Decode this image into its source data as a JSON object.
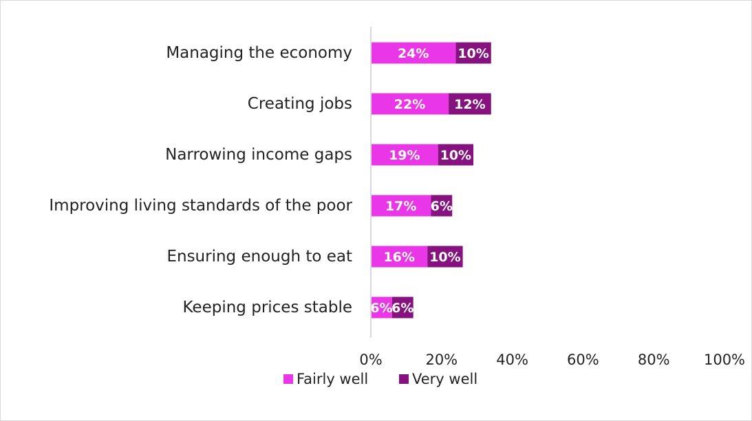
{
  "chart_data": {
    "type": "bar",
    "orientation": "horizontal",
    "stacked": true,
    "categories": [
      "Managing the economy",
      "Creating jobs",
      "Narrowing income gaps",
      "Improving living standards of the poor",
      "Ensuring enough to eat",
      "Keeping prices stable"
    ],
    "series": [
      {
        "name": "Fairly well",
        "values": [
          24,
          22,
          19,
          17,
          16,
          6
        ],
        "labels": [
          "24%",
          "22%",
          "19%",
          "17%",
          "16%",
          "6%"
        ],
        "color": "#e936e6"
      },
      {
        "name": "Very well",
        "values": [
          10,
          12,
          10,
          6,
          10,
          6
        ],
        "labels": [
          "10%",
          "12%",
          "10%",
          "6%",
          "10%",
          "6%"
        ],
        "color": "#85127f"
      }
    ],
    "xlim": [
      0,
      100
    ],
    "xticks": [
      0,
      20,
      40,
      60,
      80,
      100
    ],
    "xtick_labels": [
      "0%",
      "20%",
      "40%",
      "60%",
      "80%",
      "100%"
    ],
    "grid": false,
    "legend_position": "bottom",
    "axis_color": "#d9d9d9"
  }
}
